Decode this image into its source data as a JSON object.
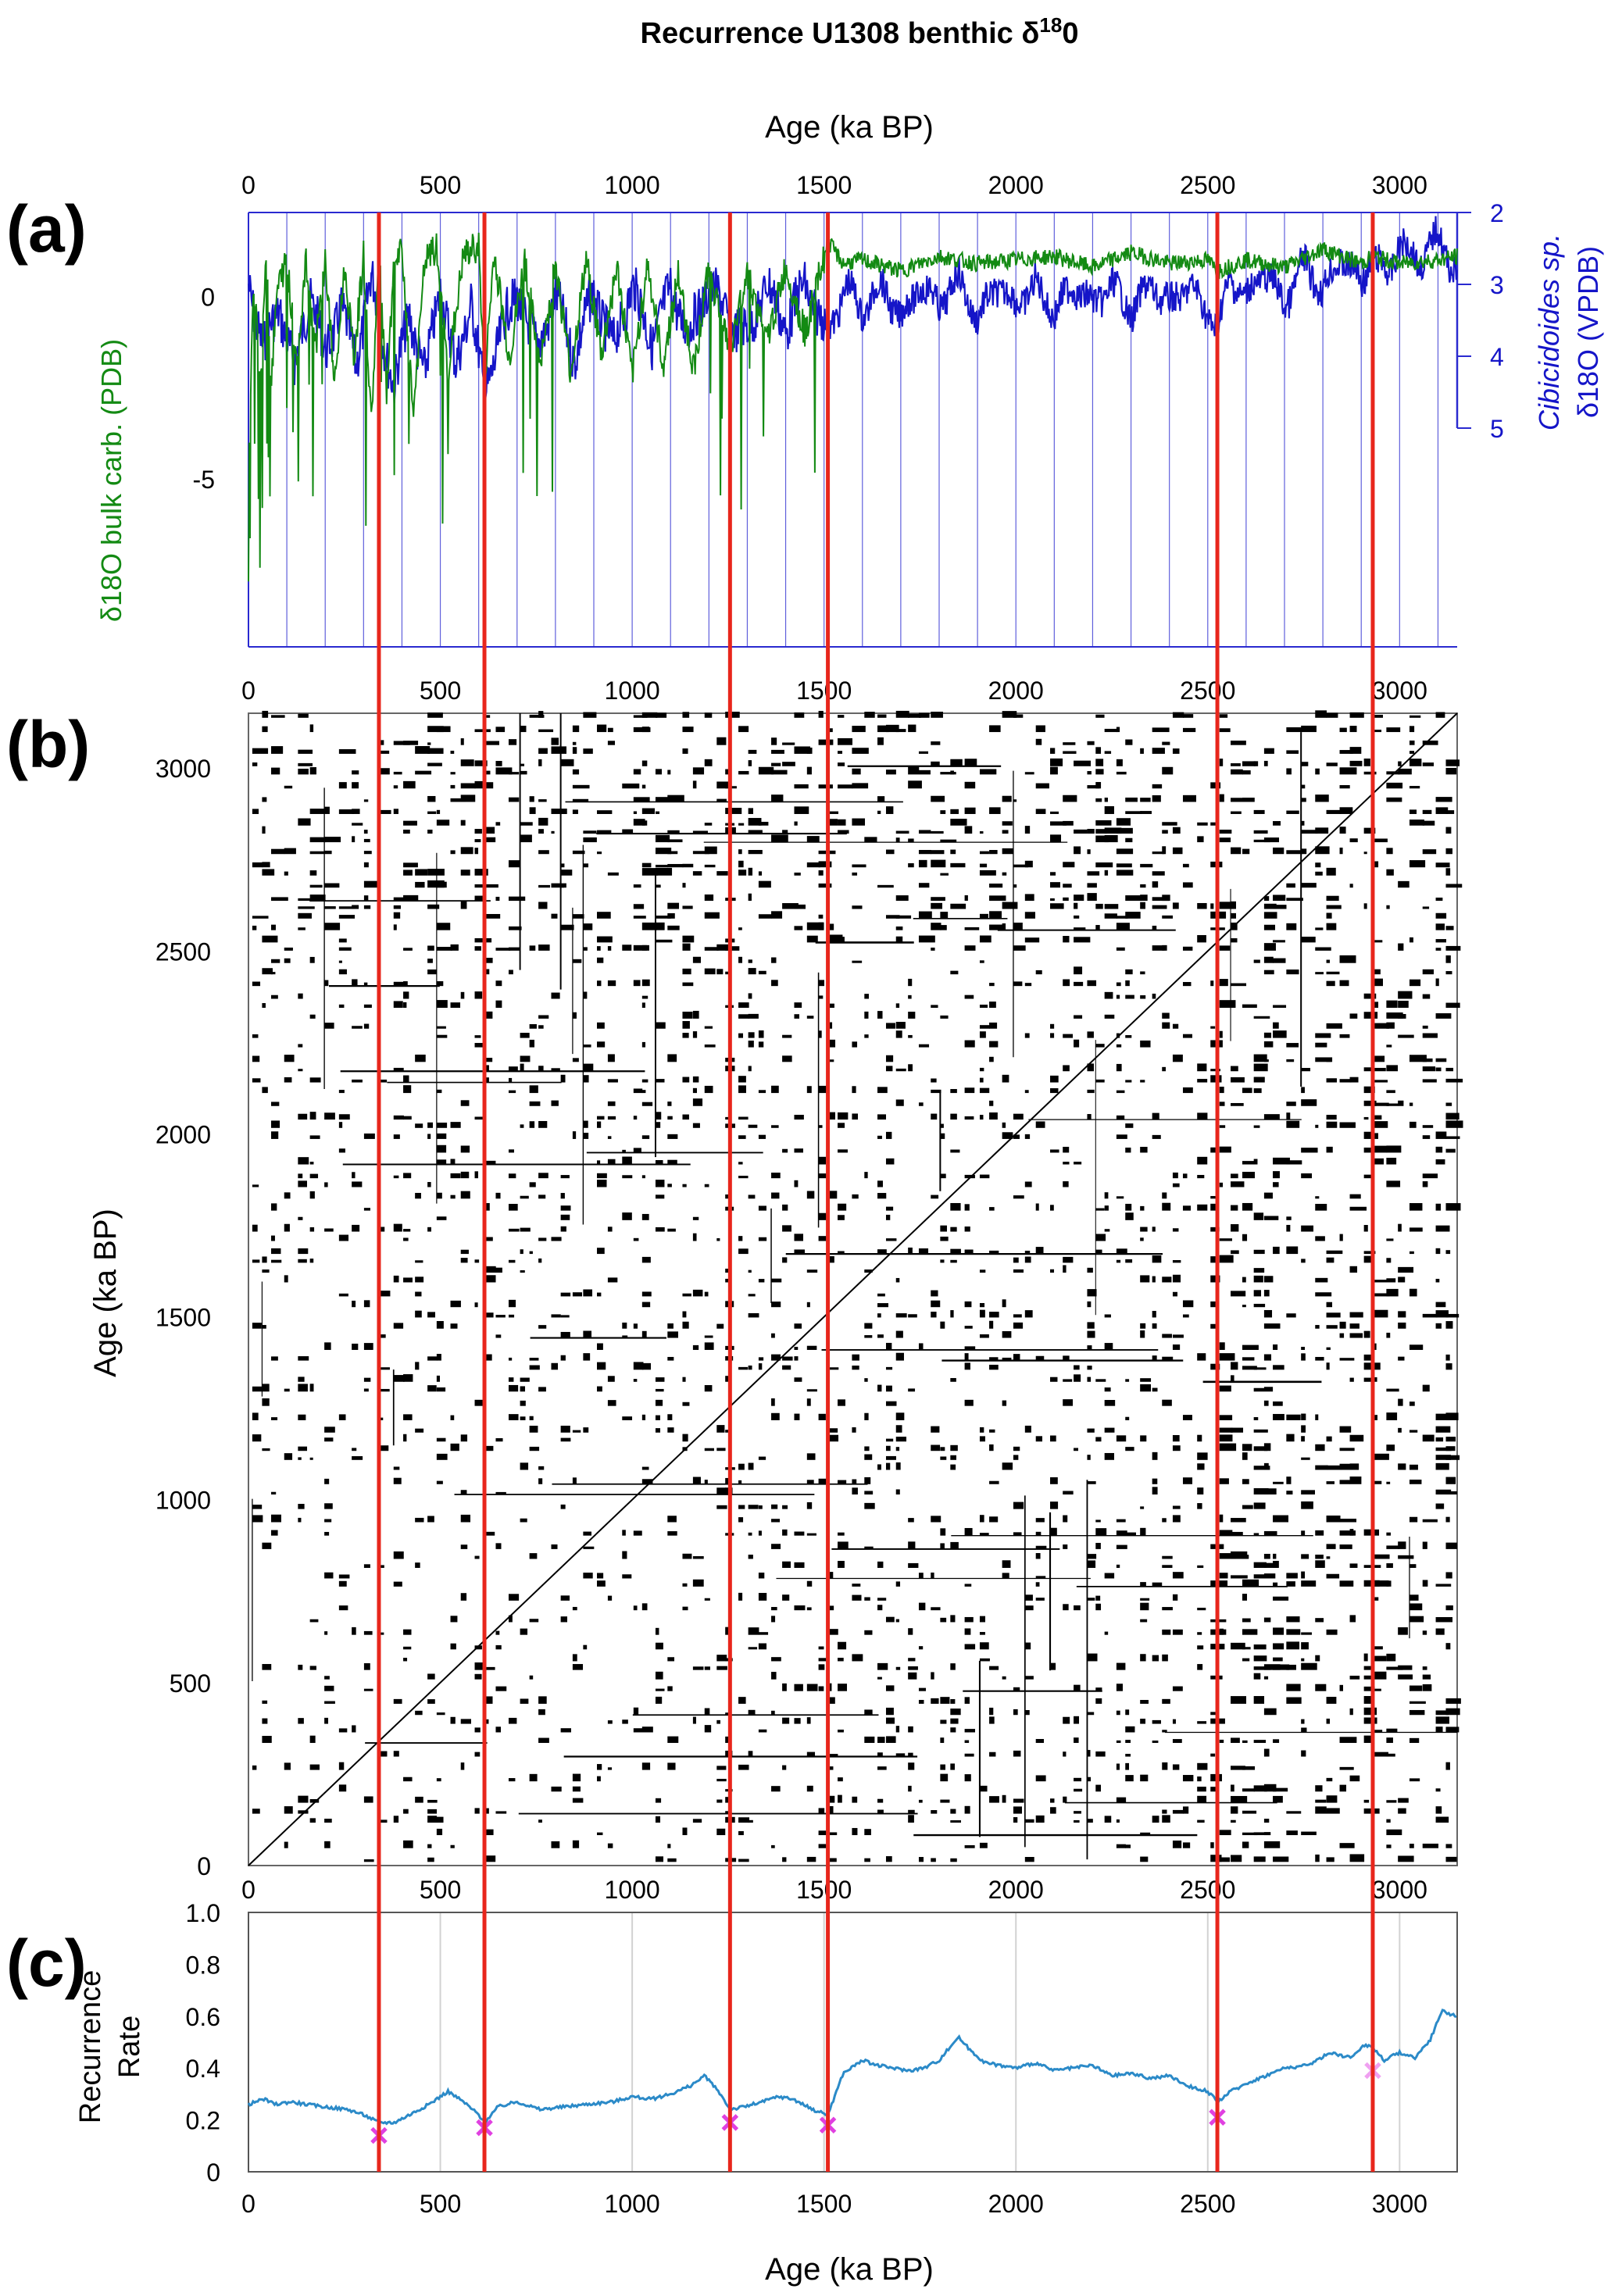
{
  "figure": {
    "title": "Recurrence U1308 benthic δ¹⁸0",
    "title_main": "Recurrence U1308 benthic δ",
    "title_sup": "18",
    "title_tail": "0",
    "colors": {
      "red_lines": "#e8261c",
      "benthic": "#1515c8",
      "bulk": "#138a13",
      "rr_line": "#2b8ac8",
      "markers": "#e040e0",
      "axis_blue": "#2a2ad0"
    }
  },
  "panels": {
    "a": {
      "label": "(a)"
    },
    "b": {
      "label": "(b)"
    },
    "c": {
      "label": "(c)"
    }
  },
  "transitions": [
    340,
    615,
    1255,
    1510,
    2525,
    2930
  ],
  "chart_data": [
    {
      "type": "line",
      "panel": "a",
      "title": "",
      "xlabel": "Age (ka BP)",
      "xlim": [
        0,
        3150
      ],
      "xticks": [
        0,
        500,
        1000,
        1500,
        2000,
        2500,
        3000
      ],
      "x_gridlines": [
        0,
        100,
        200,
        300,
        340,
        400,
        500,
        600,
        615,
        700,
        800,
        900,
        1000,
        1100,
        1200,
        1255,
        1300,
        1400,
        1500,
        1510,
        1600,
        1700,
        1800,
        1900,
        2000,
        2100,
        2200,
        2300,
        2400,
        2500,
        2525,
        2600,
        2700,
        2800,
        2900,
        2930,
        3000,
        3100
      ],
      "series": [
        {
          "name": "Cibicidoides sp. δ18O",
          "axis": "right",
          "ylabel_italic": "Cibicidoides sp.",
          "ylabel": "δ18O (VPDB)",
          "ylim": [
            5,
            2
          ],
          "yticks": [
            2,
            3,
            4,
            5
          ],
          "x": [
            0,
            40,
            80,
            120,
            160,
            200,
            240,
            280,
            320,
            340,
            380,
            420,
            460,
            500,
            540,
            580,
            615,
            650,
            700,
            750,
            800,
            850,
            900,
            950,
            1000,
            1050,
            1100,
            1150,
            1200,
            1255,
            1300,
            1350,
            1400,
            1450,
            1510,
            1560,
            1600,
            1650,
            1700,
            1750,
            1800,
            1850,
            1900,
            1950,
            2000,
            2050,
            2100,
            2150,
            2200,
            2250,
            2300,
            2350,
            2400,
            2450,
            2525,
            2560,
            2600,
            2650,
            2700,
            2750,
            2800,
            2850,
            2900,
            2930,
            2970,
            3000,
            3050,
            3100,
            3150
          ],
          "values": [
            3.0,
            3.9,
            3.3,
            4.2,
            3.1,
            4.0,
            3.3,
            4.1,
            2.9,
            3.5,
            4.4,
            3.4,
            4.3,
            3.0,
            4.2,
            3.2,
            4.6,
            3.8,
            3.1,
            3.9,
            3.2,
            4.0,
            3.1,
            3.9,
            3.0,
            3.8,
            3.1,
            3.7,
            3.0,
            3.5,
            3.7,
            3.0,
            3.6,
            3.0,
            3.7,
            3.0,
            3.4,
            3.0,
            3.5,
            3.0,
            3.3,
            2.9,
            3.5,
            3.0,
            3.3,
            3.0,
            3.4,
            3.0,
            3.3,
            3.0,
            3.4,
            3.0,
            3.3,
            3.0,
            3.6,
            2.9,
            3.2,
            2.8,
            3.3,
            2.7,
            3.1,
            2.6,
            3.0,
            2.6,
            2.9,
            2.4,
            2.7,
            2.3,
            2.9
          ]
        },
        {
          "name": "δ18O bulk carb.",
          "axis": "left",
          "ylabel": "δ18O bulk carb. (PDB)",
          "ylim": [
            -9.6,
            2.3
          ],
          "yticks": [
            -5,
            0
          ],
          "x": [
            0,
            15,
            30,
            45,
            60,
            75,
            100,
            125,
            150,
            175,
            200,
            225,
            250,
            275,
            300,
            320,
            340,
            360,
            380,
            400,
            430,
            460,
            490,
            520,
            560,
            600,
            615,
            640,
            680,
            720,
            760,
            800,
            840,
            880,
            920,
            960,
            1000,
            1040,
            1080,
            1120,
            1160,
            1200,
            1255,
            1300,
            1350,
            1400,
            1450,
            1510,
            1550,
            1600,
            1700,
            1800,
            1900,
            2000,
            2100,
            2200,
            2300,
            2400,
            2500,
            2525,
            2600,
            2700,
            2800,
            2900,
            2930,
            3000,
            3100,
            3150
          ],
          "values": [
            -4.4,
            0.6,
            -2.8,
            1.3,
            -2.2,
            0.2,
            1.0,
            -1.8,
            0.9,
            -1.4,
            1.0,
            -2.5,
            0.8,
            -1.7,
            1.1,
            -3.5,
            1.2,
            -2.8,
            0.9,
            1.2,
            -3.2,
            1.0,
            1.3,
            -2.1,
            1.1,
            1.4,
            -2.4,
            1.2,
            -1.7,
            1.0,
            -2.0,
            0.9,
            -2.1,
            1.0,
            -1.6,
            0.8,
            -2.2,
            0.9,
            -1.9,
            0.6,
            -2.0,
            0.8,
            -1.5,
            0.7,
            -1.3,
            0.8,
            -1.0,
            1.5,
            0.9,
            1.0,
            0.7,
            1.1,
            0.9,
            1.0,
            1.1,
            0.8,
            1.2,
            0.9,
            1.0,
            0.7,
            1.0,
            0.8,
            1.3,
            0.9,
            1.1,
            0.9,
            1.0,
            1.1
          ]
        }
      ]
    },
    {
      "type": "heatmap",
      "panel": "b",
      "title": "",
      "xlabel": "",
      "ylabel": "Age (ka BP)",
      "xlim": [
        0,
        3150
      ],
      "ylim": [
        0,
        3150
      ],
      "xticks": [
        0,
        500,
        1000,
        1500,
        2000,
        2500,
        3000
      ],
      "yticks": [
        0,
        500,
        1000,
        1500,
        2000,
        2500,
        3000
      ],
      "description_type": "recurrence plot (black = recurrent)"
    },
    {
      "type": "line",
      "panel": "c",
      "title": "",
      "xlabel": "Age (ka BP)",
      "ylabel": "Recurrence Rate",
      "ylabel_lines": [
        "Recurrence",
        "Rate"
      ],
      "xlim": [
        0,
        3150
      ],
      "ylim": [
        0,
        1.0
      ],
      "xticks": [
        0,
        500,
        1000,
        1500,
        2000,
        2500,
        3000
      ],
      "yticks": [
        0,
        0.2,
        0.4,
        0.6,
        0.8,
        1.0
      ],
      "ytick_labels": [
        "0",
        "0.2",
        "0.4",
        "0.6",
        "0.8",
        "1.0"
      ],
      "grid": true,
      "series": [
        {
          "name": "Recurrence rate",
          "x": [
            0,
            40,
            70,
            110,
            150,
            200,
            260,
            300,
            340,
            380,
            420,
            470,
            500,
            520,
            560,
            600,
            615,
            650,
            700,
            760,
            820,
            880,
            950,
            1000,
            1050,
            1100,
            1150,
            1190,
            1230,
            1255,
            1290,
            1340,
            1380,
            1420,
            1470,
            1510,
            1550,
            1600,
            1640,
            1680,
            1720,
            1760,
            1800,
            1850,
            1880,
            1920,
            1960,
            2000,
            2050,
            2100,
            2150,
            2200,
            2250,
            2300,
            2350,
            2400,
            2450,
            2500,
            2525,
            2560,
            2600,
            2650,
            2700,
            2760,
            2820,
            2870,
            2910,
            2930,
            2960,
            3000,
            3040,
            3080,
            3110,
            3150
          ],
          "values": [
            0.26,
            0.28,
            0.26,
            0.27,
            0.26,
            0.25,
            0.24,
            0.22,
            0.19,
            0.19,
            0.22,
            0.26,
            0.29,
            0.31,
            0.27,
            0.22,
            0.19,
            0.25,
            0.27,
            0.24,
            0.25,
            0.26,
            0.27,
            0.29,
            0.28,
            0.3,
            0.33,
            0.37,
            0.3,
            0.24,
            0.25,
            0.27,
            0.29,
            0.28,
            0.24,
            0.22,
            0.38,
            0.43,
            0.41,
            0.4,
            0.39,
            0.4,
            0.43,
            0.52,
            0.47,
            0.42,
            0.41,
            0.4,
            0.42,
            0.39,
            0.4,
            0.41,
            0.37,
            0.38,
            0.36,
            0.37,
            0.33,
            0.31,
            0.27,
            0.31,
            0.34,
            0.37,
            0.4,
            0.41,
            0.46,
            0.44,
            0.49,
            0.48,
            0.43,
            0.46,
            0.44,
            0.51,
            0.62,
            0.6
          ]
        }
      ],
      "markers": [
        {
          "x": 340,
          "y": 0.14
        },
        {
          "x": 615,
          "y": 0.17
        },
        {
          "x": 1255,
          "y": 0.19
        },
        {
          "x": 1510,
          "y": 0.18
        },
        {
          "x": 2525,
          "y": 0.21
        },
        {
          "x": 2930,
          "y": 0.39
        }
      ]
    }
  ]
}
